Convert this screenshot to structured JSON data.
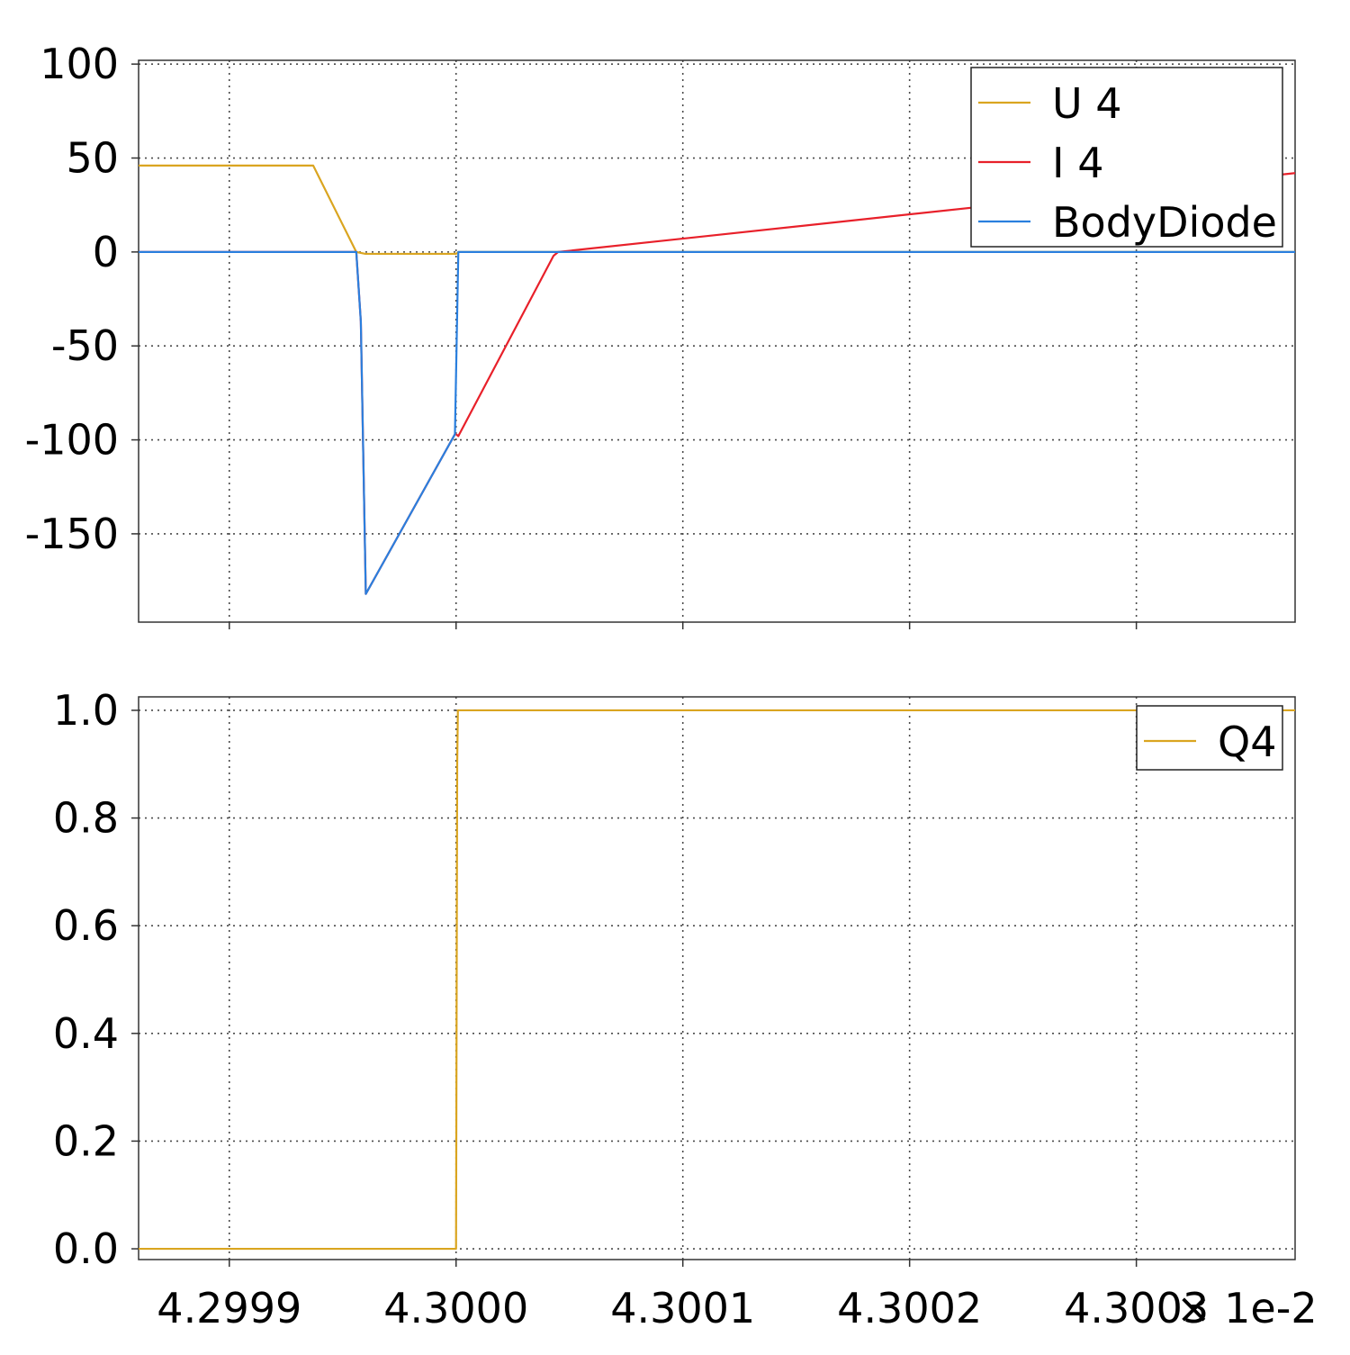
{
  "chart_data": [
    {
      "type": "line",
      "x_range": [
        4.29986,
        4.30037
      ],
      "ylim": [
        -197,
        102
      ],
      "x_ticks": [
        4.2999,
        4.3,
        4.3001,
        4.3002,
        4.3003
      ],
      "y_ticks": [
        100,
        50,
        0,
        -50,
        -100,
        -150
      ],
      "y_tick_labels": [
        "100",
        "50",
        "0",
        "-50",
        "-100",
        "-150"
      ],
      "grid": true,
      "legend_position": "top-right",
      "series": [
        {
          "name": "U 4",
          "color": "#DAA520",
          "x": [
            4.29986,
            4.299937,
            4.299956,
            4.29996,
            4.29998,
            4.299999,
            4.3,
            4.300001,
            4.30002,
            4.30004,
            4.30037
          ],
          "y": [
            46,
            46,
            0,
            -1,
            -1,
            -1,
            -1,
            0,
            0,
            0,
            0
          ]
        },
        {
          "name": "I 4",
          "color": "#E8202A",
          "x": [
            4.29986,
            4.299956,
            4.299958,
            4.2999602,
            4.2999995,
            4.3,
            4.300001,
            4.300043,
            4.300045,
            4.30037
          ],
          "y": [
            0,
            0,
            -37,
            -182,
            -97,
            -97,
            -98,
            -2,
            0,
            42
          ]
        },
        {
          "name": "BodyDiode",
          "color": "#2A7FDE",
          "x": [
            4.29986,
            4.299956,
            4.299958,
            4.2999602,
            4.2999995,
            4.300001,
            4.30037
          ],
          "y": [
            0,
            0,
            -37,
            -182,
            -97,
            0,
            0
          ]
        }
      ]
    },
    {
      "type": "line",
      "x_range": [
        4.29986,
        4.30037
      ],
      "ylim": [
        -0.02,
        1.025
      ],
      "x_ticks": [
        4.2999,
        4.3,
        4.3001,
        4.3002,
        4.3003
      ],
      "x_tick_labels": [
        "4.2999",
        "4.3000",
        "4.3001",
        "4.3002",
        "4.3003"
      ],
      "x_exponent_label": "× 1e-2",
      "y_ticks": [
        1.0,
        0.8,
        0.6,
        0.4,
        0.2,
        0.0
      ],
      "y_tick_labels": [
        "1.0",
        "0.8",
        "0.6",
        "0.4",
        "0.2",
        "0.0"
      ],
      "grid": true,
      "legend_position": "top-right",
      "series": [
        {
          "name": "Q4",
          "color": "#DAA520",
          "x": [
            4.29986,
            4.29999999,
            4.3000005,
            4.3000008,
            4.30037
          ],
          "y": [
            0,
            0,
            0.9,
            1,
            1
          ]
        }
      ]
    }
  ]
}
